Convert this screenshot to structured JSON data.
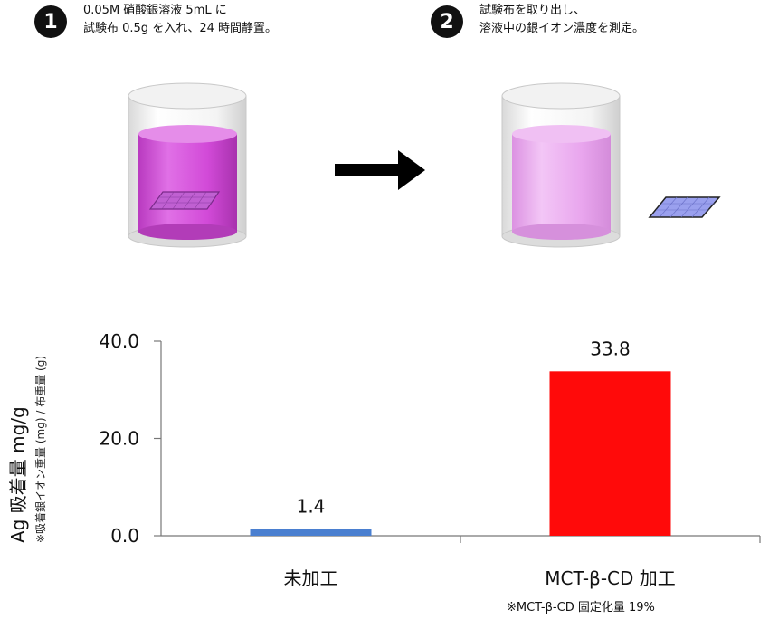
{
  "steps": [
    {
      "number": "1",
      "line1": "0.05M 硝酸銀溶液 5mL に",
      "line2": "試験布 0.5g を入れ、24 時間静置。"
    },
    {
      "number": "2",
      "line1": "試験布を取り出し、",
      "line2": "溶液中の銀イオン濃度を測定。"
    }
  ],
  "colors": {
    "solution_dark": "#d24ad8",
    "solution_light": "#e9a6ee",
    "cloth": "#9aa0ee",
    "bar_untreated": "#4a7fd0",
    "bar_treated": "#ff0a0a"
  },
  "axis": {
    "ylabel_main": "Ag 吸着量 mg/g",
    "ylabel_sub": "※吸着銀イオン重量 (mg) / 布重量 (g)"
  },
  "footnote": "※MCT-β-CD 固定化量 19%",
  "chart_data": {
    "type": "bar",
    "categories": [
      "未加工",
      "MCT-β-CD 加工"
    ],
    "values": [
      1.4,
      33.8
    ],
    "value_labels": [
      "1.4",
      "33.8"
    ],
    "yticks": [
      "0.0",
      "20.0",
      "40.0"
    ],
    "ylim": [
      0,
      40
    ],
    "ylabel": "Ag 吸着量 mg/g",
    "grid": false,
    "legend": "none"
  }
}
